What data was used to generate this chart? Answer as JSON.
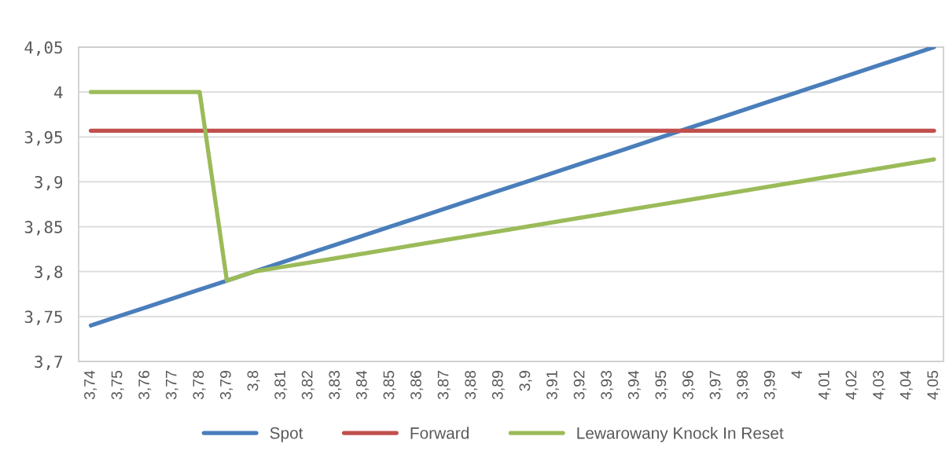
{
  "chart_data": {
    "type": "line",
    "categories": [
      "3,74",
      "3,75",
      "3,76",
      "3,77",
      "3,78",
      "3,79",
      "3,8",
      "3,81",
      "3,82",
      "3,83",
      "3,84",
      "3,85",
      "3,86",
      "3,87",
      "3,88",
      "3,89",
      "3,9",
      "3,91",
      "3,92",
      "3,93",
      "3,94",
      "3,95",
      "3,96",
      "3,97",
      "3,98",
      "3,99",
      "4",
      "4,01",
      "4,02",
      "4,03",
      "4,04",
      "4,05"
    ],
    "series": [
      {
        "name": "Spot",
        "color": "#4a7ebb",
        "values": [
          3.74,
          3.75,
          3.76,
          3.77,
          3.78,
          3.79,
          3.8,
          3.81,
          3.82,
          3.83,
          3.84,
          3.85,
          3.86,
          3.87,
          3.88,
          3.89,
          3.9,
          3.91,
          3.92,
          3.93,
          3.94,
          3.95,
          3.96,
          3.97,
          3.98,
          3.99,
          4.0,
          4.01,
          4.02,
          4.03,
          4.04,
          4.05
        ]
      },
      {
        "name": "Forward",
        "color": "#c0504d",
        "values": [
          3.957,
          3.957,
          3.957,
          3.957,
          3.957,
          3.957,
          3.957,
          3.957,
          3.957,
          3.957,
          3.957,
          3.957,
          3.957,
          3.957,
          3.957,
          3.957,
          3.957,
          3.957,
          3.957,
          3.957,
          3.957,
          3.957,
          3.957,
          3.957,
          3.957,
          3.957,
          3.957,
          3.957,
          3.957,
          3.957,
          3.957,
          3.957
        ]
      },
      {
        "name": "Lewarowany Knock In Reset",
        "color": "#9bbb59",
        "values": [
          4.0,
          4.0,
          4.0,
          4.0,
          4.0,
          3.79,
          3.8,
          3.805,
          3.81,
          3.815,
          3.82,
          3.825,
          3.83,
          3.835,
          3.84,
          3.845,
          3.85,
          3.855,
          3.86,
          3.865,
          3.87,
          3.875,
          3.88,
          3.885,
          3.89,
          3.895,
          3.9,
          3.905,
          3.91,
          3.915,
          3.92,
          3.925
        ]
      }
    ],
    "ylim": [
      3.7,
      4.05
    ],
    "yticks": [
      {
        "value": 3.7,
        "label": "3,7"
      },
      {
        "value": 3.75,
        "label": "3,75"
      },
      {
        "value": 3.8,
        "label": "3,8"
      },
      {
        "value": 3.85,
        "label": "3,85"
      },
      {
        "value": 3.9,
        "label": "3,9"
      },
      {
        "value": 3.95,
        "label": "3,95"
      },
      {
        "value": 4.0,
        "label": "4"
      },
      {
        "value": 4.05,
        "label": "4,05"
      }
    ],
    "grid": "y",
    "legend": "bottom"
  }
}
